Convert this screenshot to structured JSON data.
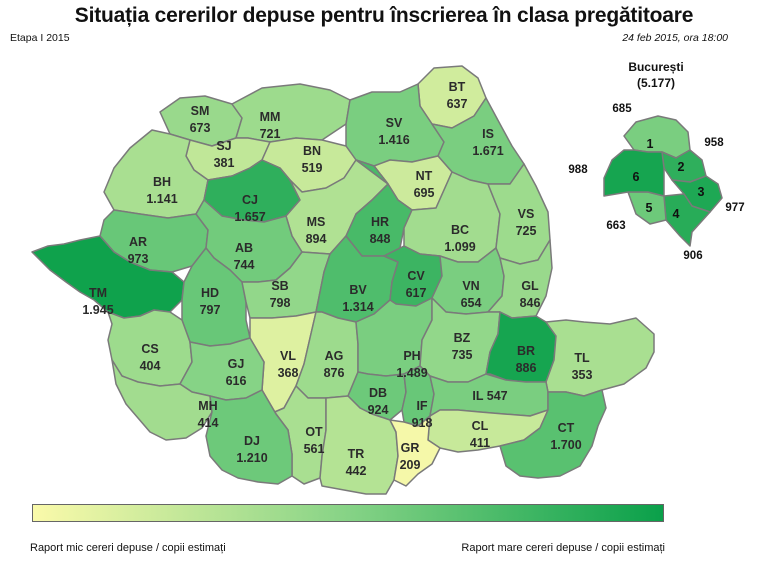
{
  "title": "Situația cererilor depuse pentru înscrierea în clasa pregătitoare",
  "stage": "Etapa I 2015",
  "date": "24 feb 2015, ora 18:00",
  "colors": {
    "scale_low": "#fafaaa",
    "scale_mid": "#86d386",
    "scale_high": "#0aa04a",
    "border": "#7a7a7a"
  },
  "counties": [
    {
      "code": "SM",
      "value": "673",
      "level": 0.42
    },
    {
      "code": "MM",
      "value": "721",
      "level": 0.4
    },
    {
      "code": "BT",
      "value": "637",
      "level": 0.18
    },
    {
      "code": "SV",
      "value": "1.416",
      "level": 0.55
    },
    {
      "code": "IS",
      "value": "1.671",
      "level": 0.55
    },
    {
      "code": "SJ",
      "value": "381",
      "level": 0.25
    },
    {
      "code": "BN",
      "value": "519",
      "level": 0.22
    },
    {
      "code": "NT",
      "value": "695",
      "level": 0.2
    },
    {
      "code": "BH",
      "value": "1.141",
      "level": 0.35
    },
    {
      "code": "CJ",
      "value": "1.657",
      "level": 0.85
    },
    {
      "code": "MS",
      "value": "894",
      "level": 0.32
    },
    {
      "code": "HR",
      "value": "848",
      "level": 0.75
    },
    {
      "code": "BC",
      "value": "1.099",
      "level": 0.38
    },
    {
      "code": "VS",
      "value": "725",
      "level": 0.4
    },
    {
      "code": "AR",
      "value": "973",
      "level": 0.62
    },
    {
      "code": "AB",
      "value": "744",
      "level": 0.58
    },
    {
      "code": "TM",
      "value": "1.945",
      "level": 0.98
    },
    {
      "code": "HD",
      "value": "797",
      "level": 0.62
    },
    {
      "code": "SB",
      "value": "798",
      "level": 0.45
    },
    {
      "code": "BV",
      "value": "1.314",
      "level": 0.72
    },
    {
      "code": "CV",
      "value": "617",
      "level": 0.8
    },
    {
      "code": "VN",
      "value": "654",
      "level": 0.55
    },
    {
      "code": "GL",
      "value": "846",
      "level": 0.42
    },
    {
      "code": "CS",
      "value": "404",
      "level": 0.4
    },
    {
      "code": "VL",
      "value": "368",
      "level": 0.12
    },
    {
      "code": "AG",
      "value": "876",
      "level": 0.4
    },
    {
      "code": "PH",
      "value": "1.489",
      "level": 0.55
    },
    {
      "code": "BZ",
      "value": "735",
      "level": 0.45
    },
    {
      "code": "BR",
      "value": "886",
      "level": 0.95
    },
    {
      "code": "TL",
      "value": "353",
      "level": 0.35
    },
    {
      "code": "GJ",
      "value": "616",
      "level": 0.5
    },
    {
      "code": "DB",
      "value": "924",
      "level": 0.6
    },
    {
      "code": "MH",
      "value": "414",
      "level": 0.38
    },
    {
      "code": "IF",
      "value": "918",
      "level": 0.62
    },
    {
      "code": "IL",
      "value": "547",
      "level": 0.55
    },
    {
      "code": "OT",
      "value": "561",
      "level": 0.35
    },
    {
      "code": "CL",
      "value": "411",
      "level": 0.22
    },
    {
      "code": "DJ",
      "value": "1.210",
      "level": 0.6
    },
    {
      "code": "TR",
      "value": "442",
      "level": 0.3
    },
    {
      "code": "GR",
      "value": "209",
      "level": 0.02
    },
    {
      "code": "CT",
      "value": "1.700",
      "level": 0.68
    }
  ],
  "bucuresti": {
    "title": "București",
    "total": "(5.177)",
    "sectors": [
      {
        "label": "1",
        "value": "685",
        "level": 0.55
      },
      {
        "label": "2",
        "value": "958",
        "level": 0.85
      },
      {
        "label": "3",
        "value": "977",
        "level": 0.92
      },
      {
        "label": "4",
        "value": "906",
        "level": 0.88
      },
      {
        "label": "5",
        "value": "663",
        "level": 0.6
      },
      {
        "label": "6",
        "value": "988",
        "level": 0.95
      }
    ]
  },
  "legend": {
    "low_label": "Raport mic cereri depuse / copii estimați",
    "high_label": "Raport mare cereri depuse / copii estimați"
  }
}
